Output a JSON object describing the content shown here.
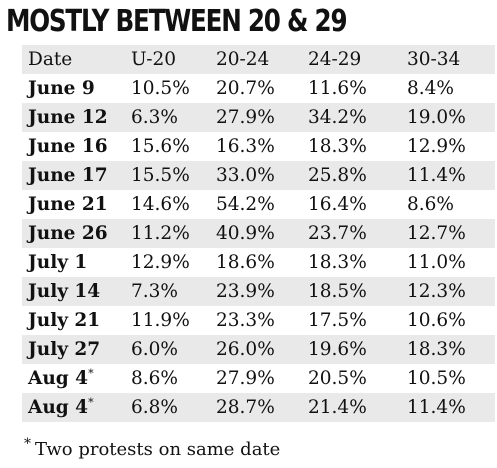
{
  "chart_data": {
    "type": "table",
    "title": "MOSTLY BETWEEN 20 & 29",
    "columns": [
      "Date",
      "U-20",
      "20-24",
      "24-29",
      "30-34"
    ],
    "rows": [
      {
        "date": "June 9",
        "mark": "",
        "values": [
          "10.5%",
          "20.7%",
          "11.6%",
          "8.4%"
        ]
      },
      {
        "date": "June 12",
        "mark": "",
        "values": [
          "6.3%",
          "27.9%",
          "34.2%",
          "19.0%"
        ]
      },
      {
        "date": "June 16",
        "mark": "",
        "values": [
          "15.6%",
          "16.3%",
          "18.3%",
          "12.9%"
        ]
      },
      {
        "date": "June 17",
        "mark": "",
        "values": [
          "15.5%",
          "33.0%",
          "25.8%",
          "11.4%"
        ]
      },
      {
        "date": "June 21",
        "mark": "",
        "values": [
          "14.6%",
          "54.2%",
          "16.4%",
          "8.6%"
        ]
      },
      {
        "date": "June 26",
        "mark": "",
        "values": [
          "11.2%",
          "40.9%",
          "23.7%",
          "12.7%"
        ]
      },
      {
        "date": "July 1",
        "mark": "",
        "values": [
          "12.9%",
          "18.6%",
          "18.3%",
          "11.0%"
        ]
      },
      {
        "date": "July 14",
        "mark": "",
        "values": [
          "7.3%",
          "23.9%",
          "18.5%",
          "12.3%"
        ]
      },
      {
        "date": "July 21",
        "mark": "",
        "values": [
          "11.9%",
          "23.3%",
          "17.5%",
          "10.6%"
        ]
      },
      {
        "date": "July 27",
        "mark": "",
        "values": [
          "6.0%",
          "26.0%",
          "19.6%",
          "18.3%"
        ]
      },
      {
        "date": "Aug 4",
        "mark": "*",
        "values": [
          "8.6%",
          "27.9%",
          "20.5%",
          "10.5%"
        ]
      },
      {
        "date": "Aug 4",
        "mark": "*",
        "values": [
          "6.8%",
          "28.7%",
          "21.4%",
          "11.4%"
        ]
      }
    ],
    "footnote_mark": "*",
    "footnote": "Two protests on same date"
  },
  "colors": {
    "shaded_row": "#e9e9e9",
    "text": "#111111",
    "background": "#ffffff"
  }
}
